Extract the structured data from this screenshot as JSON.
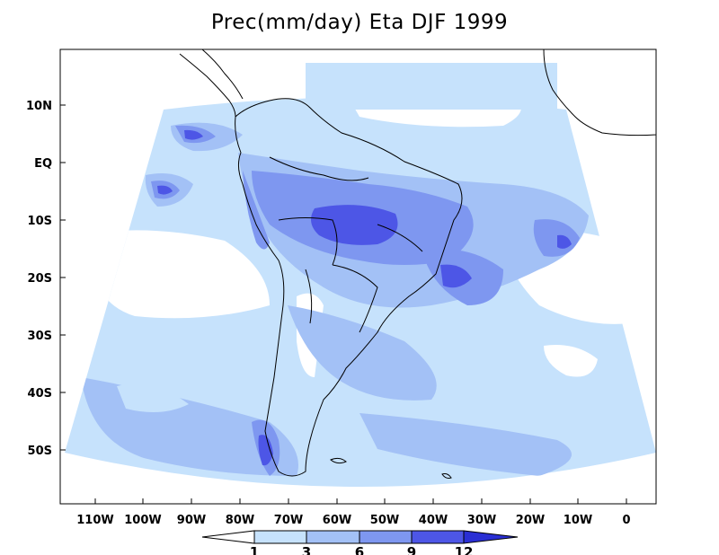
{
  "title": "Prec(mm/day) Eta DJF 1999",
  "lat_labels": [
    "10N",
    "EQ",
    "10S",
    "20S",
    "30S",
    "40S",
    "50S"
  ],
  "lon_labels": [
    "110W",
    "100W",
    "90W",
    "80W",
    "70W",
    "60W",
    "50W",
    "40W",
    "30W",
    "20W",
    "10W",
    "0"
  ],
  "colorbar": {
    "levels": [
      "1",
      "3",
      "6",
      "9",
      "12"
    ],
    "colors": [
      "#ffffff",
      "#c6e2fc",
      "#a3c1f6",
      "#7e97f0",
      "#4d56e6",
      "#2a2fd4"
    ]
  }
}
